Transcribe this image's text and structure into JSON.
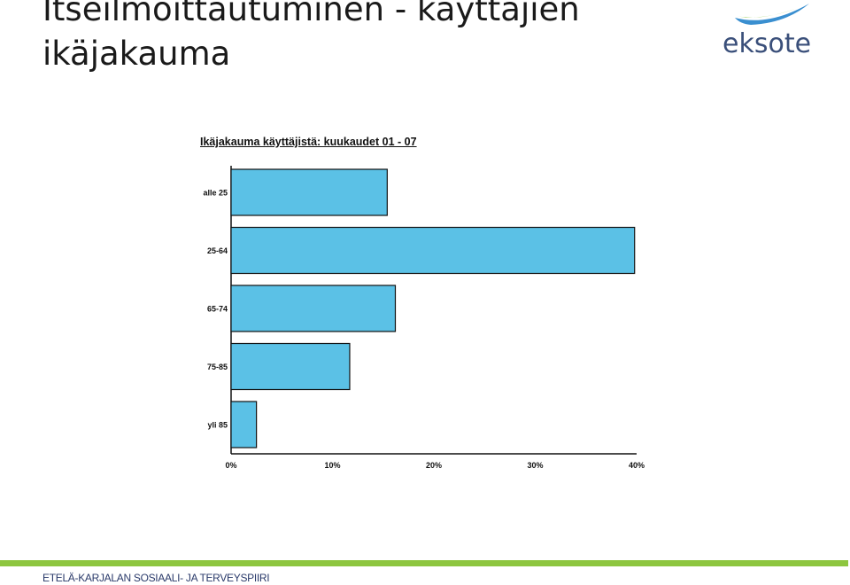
{
  "slide": {
    "title_line1": "Itseilmoittautuminen - käyttäjien",
    "title_line2": "ikäjakauma",
    "footer": "ETELÄ-KARJALAN SOSIAALI- JA TERVEYSPIIRI"
  },
  "logo": {
    "text": "eksote",
    "colors": {
      "swoosh_top": "#3a8fd0",
      "swoosh_bottom": "#8dc63f",
      "text": "#3a4f7a"
    }
  },
  "colors": {
    "bar_fill": "#5bc1e6",
    "bar_stroke": "#111111",
    "footer_bar": "#8dc63f"
  },
  "chart_data": {
    "type": "bar",
    "orientation": "horizontal",
    "title": "Ikäjakauma käyttäjistä: kuukaudet 01 - 07",
    "categories": [
      "alle 25",
      "25-64",
      "65-74",
      "75-85",
      "yli 85"
    ],
    "values": [
      15.4,
      39.8,
      16.2,
      11.7,
      2.5
    ],
    "xlim": [
      0,
      40
    ],
    "xticks": [
      "0%",
      "10%",
      "20%",
      "30%",
      "40%"
    ],
    "xlabel": "",
    "ylabel": "",
    "grid": false
  }
}
